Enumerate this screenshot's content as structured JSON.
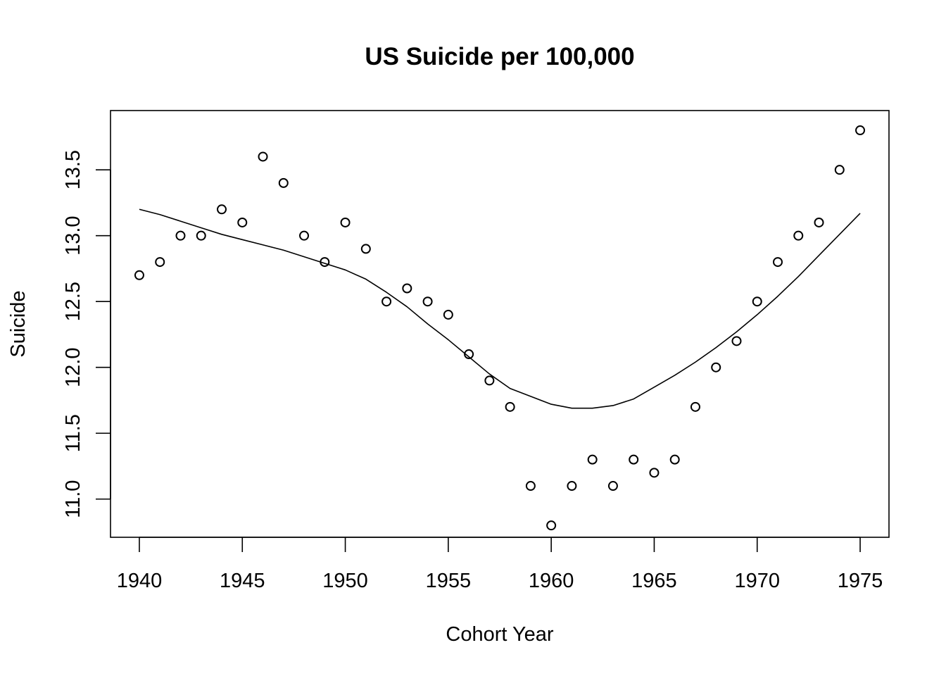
{
  "chart_data": {
    "type": "scatter",
    "title": "US Suicide per 100,000",
    "xlabel": "Cohort Year",
    "ylabel": "Suicide",
    "xlim": [
      1938.6,
      1976.4
    ],
    "ylim": [
      10.71,
      13.95
    ],
    "grid": false,
    "x_ticks": [
      1940,
      1945,
      1950,
      1955,
      1960,
      1965,
      1970,
      1975
    ],
    "y_ticks": [
      11.0,
      11.5,
      12.0,
      12.5,
      13.0,
      13.5
    ],
    "x_tick_labels": [
      "1940",
      "1945",
      "1950",
      "1955",
      "1960",
      "1965",
      "1970",
      "1975"
    ],
    "y_tick_labels": [
      "11.0",
      "11.5",
      "12.0",
      "12.5",
      "13.0",
      "13.5"
    ],
    "points": {
      "marker": "open-circle",
      "x": [
        1940,
        1941,
        1942,
        1943,
        1944,
        1945,
        1946,
        1947,
        1948,
        1949,
        1950,
        1951,
        1952,
        1953,
        1954,
        1955,
        1956,
        1957,
        1958,
        1959,
        1960,
        1961,
        1962,
        1963,
        1964,
        1965,
        1966,
        1967,
        1968,
        1969,
        1970,
        1971,
        1972,
        1973,
        1974,
        1975
      ],
      "y": [
        12.7,
        12.8,
        13.0,
        13.0,
        13.2,
        13.1,
        13.6,
        13.4,
        13.0,
        12.8,
        13.1,
        12.9,
        12.5,
        12.6,
        12.5,
        12.4,
        12.1,
        11.9,
        11.7,
        11.1,
        10.8,
        11.1,
        11.3,
        11.1,
        11.3,
        11.2,
        11.3,
        11.7,
        12.0,
        12.2,
        12.5,
        12.8,
        13.0,
        13.1,
        13.5,
        13.8
      ]
    },
    "smooth_line": {
      "style": "solid",
      "x": [
        1940,
        1941,
        1942,
        1943,
        1944,
        1945,
        1946,
        1947,
        1948,
        1949,
        1950,
        1951,
        1952,
        1953,
        1954,
        1955,
        1956,
        1957,
        1958,
        1959,
        1960,
        1961,
        1962,
        1963,
        1964,
        1965,
        1966,
        1967,
        1968,
        1969,
        1970,
        1971,
        1972,
        1973,
        1974,
        1975
      ],
      "y": [
        13.2,
        13.16,
        13.11,
        13.06,
        13.01,
        12.97,
        12.93,
        12.89,
        12.84,
        12.79,
        12.74,
        12.67,
        12.57,
        12.46,
        12.33,
        12.21,
        12.08,
        11.95,
        11.84,
        11.78,
        11.72,
        11.69,
        11.69,
        11.71,
        11.76,
        11.85,
        11.94,
        12.04,
        12.15,
        12.27,
        12.4,
        12.54,
        12.69,
        12.85,
        13.01,
        13.17
      ]
    }
  }
}
